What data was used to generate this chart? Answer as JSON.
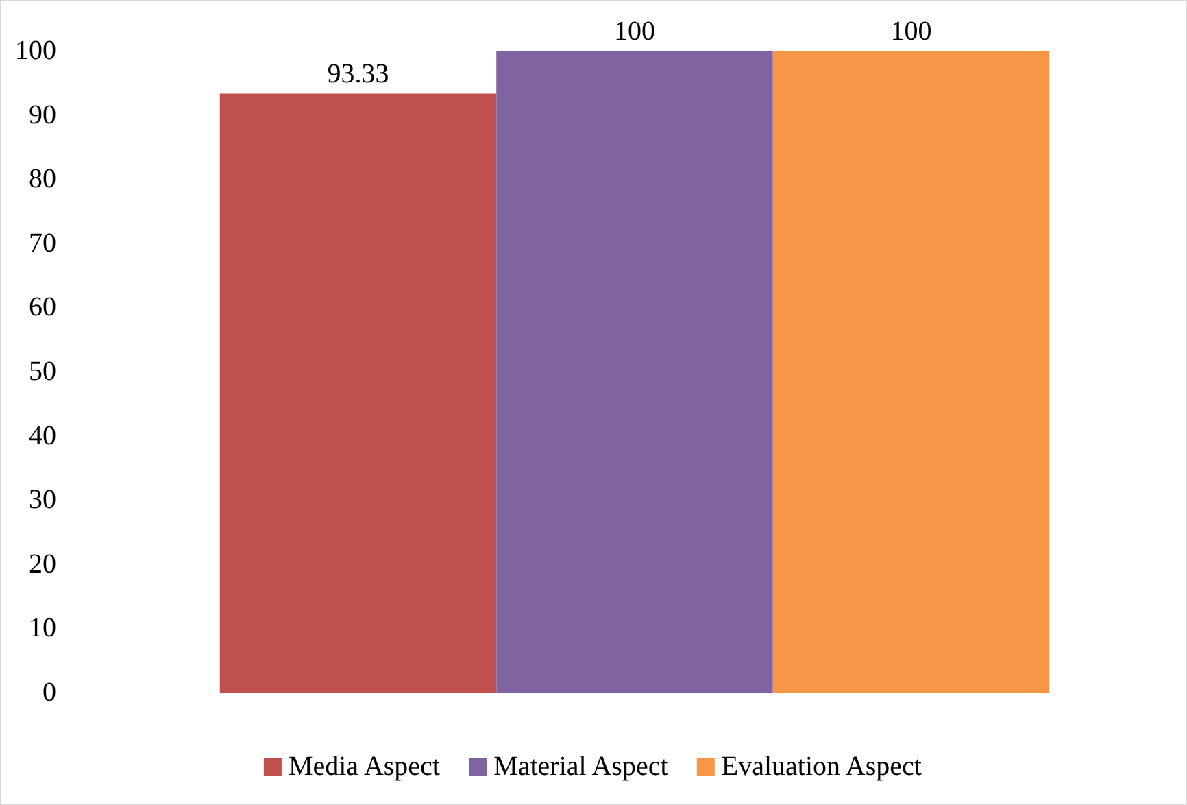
{
  "chart_data": {
    "type": "bar",
    "categories": [
      null
    ],
    "series": [
      {
        "name": "Media Aspect",
        "color": "#c0504d",
        "values": [
          93.33
        ]
      },
      {
        "name": "Material Aspect",
        "color": "#8064a2",
        "values": [
          100
        ]
      },
      {
        "name": "Evaluation Aspect",
        "color": "#f79646",
        "values": [
          100
        ]
      }
    ],
    "ylim": [
      0,
      100
    ],
    "yticks": [
      0,
      10,
      20,
      30,
      40,
      50,
      60,
      70,
      80,
      90,
      100
    ],
    "data_labels": true,
    "legend": "bottom",
    "grid": false
  }
}
